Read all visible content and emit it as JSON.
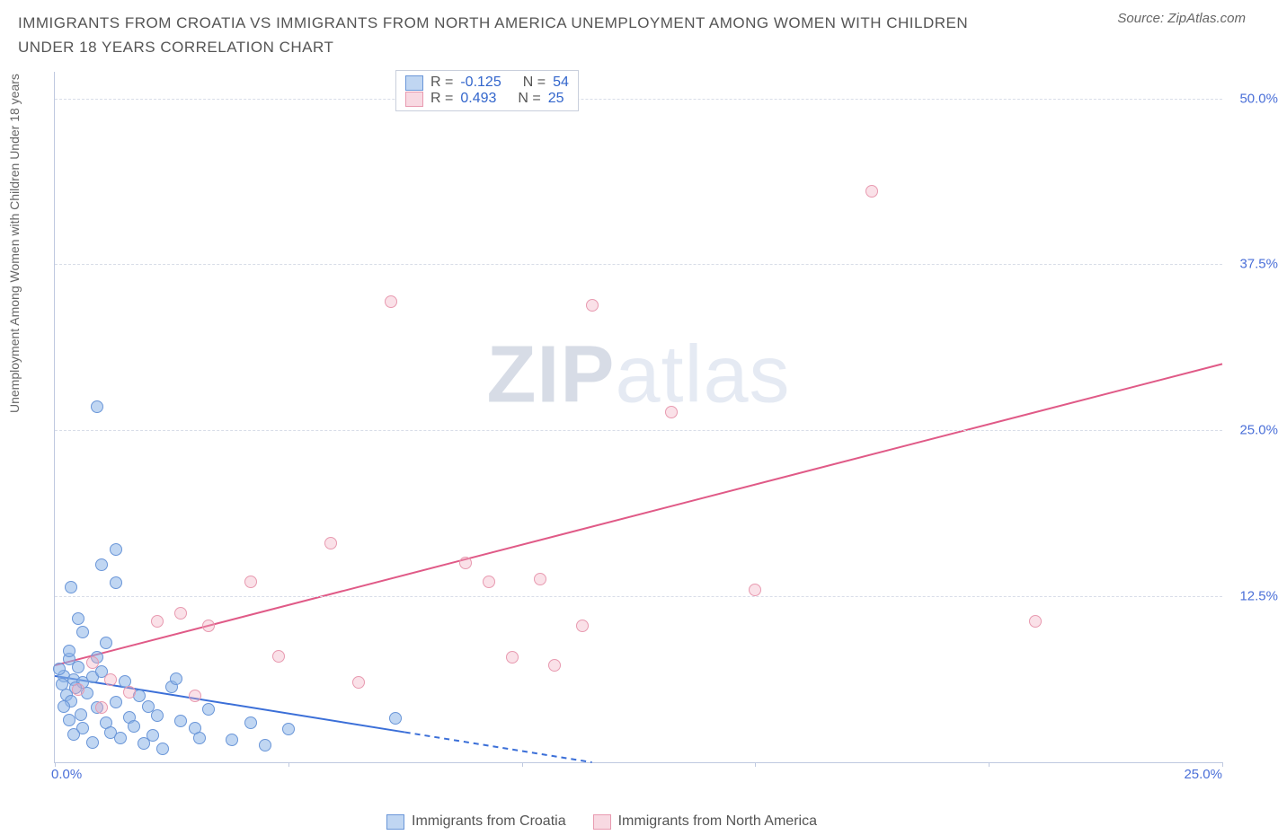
{
  "header": {
    "title": "IMMIGRANTS FROM CROATIA VS IMMIGRANTS FROM NORTH AMERICA UNEMPLOYMENT AMONG WOMEN WITH CHILDREN UNDER 18 YEARS CORRELATION CHART",
    "source_prefix": "Source: ",
    "source": "ZipAtlas.com"
  },
  "y_axis_label": "Unemployment Among Women with Children Under 18 years",
  "watermark_a": "ZIP",
  "watermark_b": "atlas",
  "chart": {
    "type": "scatter",
    "xlim": [
      0,
      25
    ],
    "ylim": [
      0,
      52
    ],
    "background_color": "#ffffff",
    "grid_color": "#d8dde8",
    "axis_color": "#bfc9e0",
    "tick_color": "#4a6fd8",
    "y_ticks": [
      12.5,
      25.0,
      37.5,
      50.0
    ],
    "y_tick_labels": [
      "12.5%",
      "25.0%",
      "37.5%",
      "50.0%"
    ],
    "x_ticks": [
      0,
      5,
      10,
      15,
      20,
      25
    ],
    "x_tick_labels": [
      "0.0%",
      "",
      "",
      "",
      "",
      "25.0%"
    ],
    "series": [
      {
        "name": "Immigrants from Croatia",
        "color_fill": "rgba(141,181,232,0.55)",
        "color_stroke": "#6a96d8",
        "marker": "circle",
        "marker_size": 14,
        "R": "-0.125",
        "N": "54",
        "trend": {
          "x1": 0,
          "y1": 6.5,
          "x2": 11.5,
          "y2": 0,
          "color": "#3b6fd8",
          "width": 2,
          "dash_after_x": 7.5
        },
        "points": [
          [
            0.2,
            6.5
          ],
          [
            0.3,
            7.8
          ],
          [
            0.15,
            5.9
          ],
          [
            0.4,
            6.2
          ],
          [
            0.25,
            5.1
          ],
          [
            0.35,
            4.6
          ],
          [
            0.5,
            7.2
          ],
          [
            0.3,
            8.4
          ],
          [
            0.6,
            6.0
          ],
          [
            0.2,
            4.2
          ],
          [
            0.45,
            5.6
          ],
          [
            0.1,
            7.0
          ],
          [
            0.55,
            3.6
          ],
          [
            0.7,
            5.2
          ],
          [
            0.8,
            6.4
          ],
          [
            0.3,
            3.2
          ],
          [
            0.9,
            4.1
          ],
          [
            0.6,
            2.6
          ],
          [
            1.0,
            6.8
          ],
          [
            0.4,
            2.1
          ],
          [
            1.3,
            4.5
          ],
          [
            1.1,
            3.0
          ],
          [
            1.5,
            6.1
          ],
          [
            1.2,
            2.2
          ],
          [
            1.6,
            3.4
          ],
          [
            0.8,
            1.5
          ],
          [
            1.8,
            5.0
          ],
          [
            1.4,
            1.8
          ],
          [
            2.0,
            4.2
          ],
          [
            1.7,
            2.7
          ],
          [
            2.2,
            3.5
          ],
          [
            1.9,
            1.4
          ],
          [
            2.5,
            5.7
          ],
          [
            2.1,
            2.0
          ],
          [
            2.7,
            3.1
          ],
          [
            2.3,
            1.0
          ],
          [
            3.0,
            2.6
          ],
          [
            2.6,
            6.3
          ],
          [
            3.3,
            4.0
          ],
          [
            3.1,
            1.8
          ],
          [
            1.0,
            14.9
          ],
          [
            1.3,
            13.5
          ],
          [
            1.3,
            16.0
          ],
          [
            0.35,
            13.2
          ],
          [
            0.9,
            26.8
          ],
          [
            4.5,
            1.3
          ],
          [
            4.2,
            3.0
          ],
          [
            3.8,
            1.7
          ],
          [
            5.0,
            2.5
          ],
          [
            7.3,
            3.3
          ],
          [
            1.1,
            9.0
          ],
          [
            0.6,
            9.8
          ],
          [
            0.9,
            7.9
          ],
          [
            0.5,
            10.8
          ]
        ]
      },
      {
        "name": "Immigrants from North America",
        "color_fill": "rgba(240,170,190,0.35)",
        "color_stroke": "#e89ab0",
        "marker": "circle",
        "marker_size": 14,
        "R": "0.493",
        "N": "25",
        "trend": {
          "x1": 0,
          "y1": 7.3,
          "x2": 25,
          "y2": 30.0,
          "color": "#e05a87",
          "width": 2
        },
        "points": [
          [
            0.8,
            7.5
          ],
          [
            1.2,
            6.2
          ],
          [
            1.6,
            5.3
          ],
          [
            2.2,
            10.6
          ],
          [
            2.7,
            11.2
          ],
          [
            3.3,
            10.3
          ],
          [
            4.2,
            13.6
          ],
          [
            5.9,
            16.5
          ],
          [
            7.2,
            34.7
          ],
          [
            8.8,
            15.0
          ],
          [
            9.3,
            13.6
          ],
          [
            9.8,
            7.9
          ],
          [
            10.4,
            13.8
          ],
          [
            10.7,
            7.3
          ],
          [
            11.3,
            10.3
          ],
          [
            11.5,
            34.4
          ],
          [
            13.2,
            26.4
          ],
          [
            15.0,
            13.0
          ],
          [
            17.5,
            43.0
          ],
          [
            21.0,
            10.6
          ],
          [
            0.5,
            5.5
          ],
          [
            1.0,
            4.1
          ],
          [
            3.0,
            5.0
          ],
          [
            6.5,
            6.0
          ],
          [
            4.8,
            8.0
          ]
        ]
      }
    ]
  },
  "legend_top": {
    "labels": {
      "r": "R =",
      "n": "N ="
    }
  },
  "legend_bottom": {
    "items": [
      "Immigrants from Croatia",
      "Immigrants from North America"
    ]
  }
}
